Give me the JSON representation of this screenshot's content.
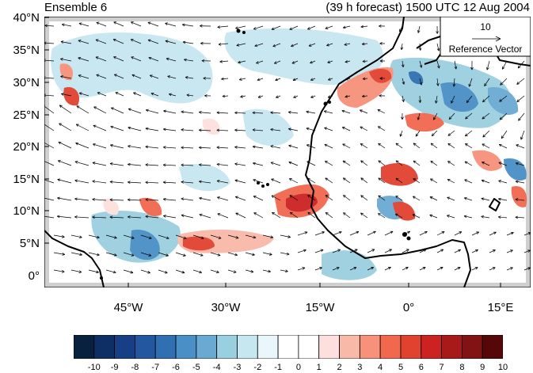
{
  "map": {
    "title_left": "Ensemble 6",
    "title_right": "(39 h forecast) 1500 UTC 12 Aug 2004",
    "lat_labels": [
      "40°N",
      "35°N",
      "30°N",
      "25°N",
      "20°N",
      "15°N",
      "10°N",
      "5°N",
      "0°"
    ],
    "lon_labels": [
      "45°W",
      "30°W",
      "15°W",
      "0°",
      "15°E"
    ],
    "extent": {
      "lon_min": -57,
      "lon_max": 19,
      "lat_min": 0,
      "lat_max": 40
    },
    "reference_vector": {
      "magnitude": "10",
      "label": "Reference Vector"
    }
  },
  "colorbar": {
    "labels": [
      "-10",
      "-9",
      "-8",
      "-7",
      "-6",
      "-5",
      "-4",
      "-3",
      "-2",
      "-1",
      "0",
      "1",
      "2",
      "3",
      "4",
      "5",
      "6",
      "7",
      "8",
      "9",
      "10"
    ],
    "colors": [
      "#08213f",
      "#0e2f66",
      "#163f86",
      "#2358a0",
      "#2f6fb2",
      "#4a8fc6",
      "#6aa9d2",
      "#9acfe0",
      "#c6e6f0",
      "#e9f6fb",
      "#ffffff",
      "#ffffff",
      "#fde0dd",
      "#f9b9a8",
      "#f7917a",
      "#f2684f",
      "#e1412f",
      "#cc2222",
      "#a81a1a",
      "#821314",
      "#560808"
    ]
  }
}
